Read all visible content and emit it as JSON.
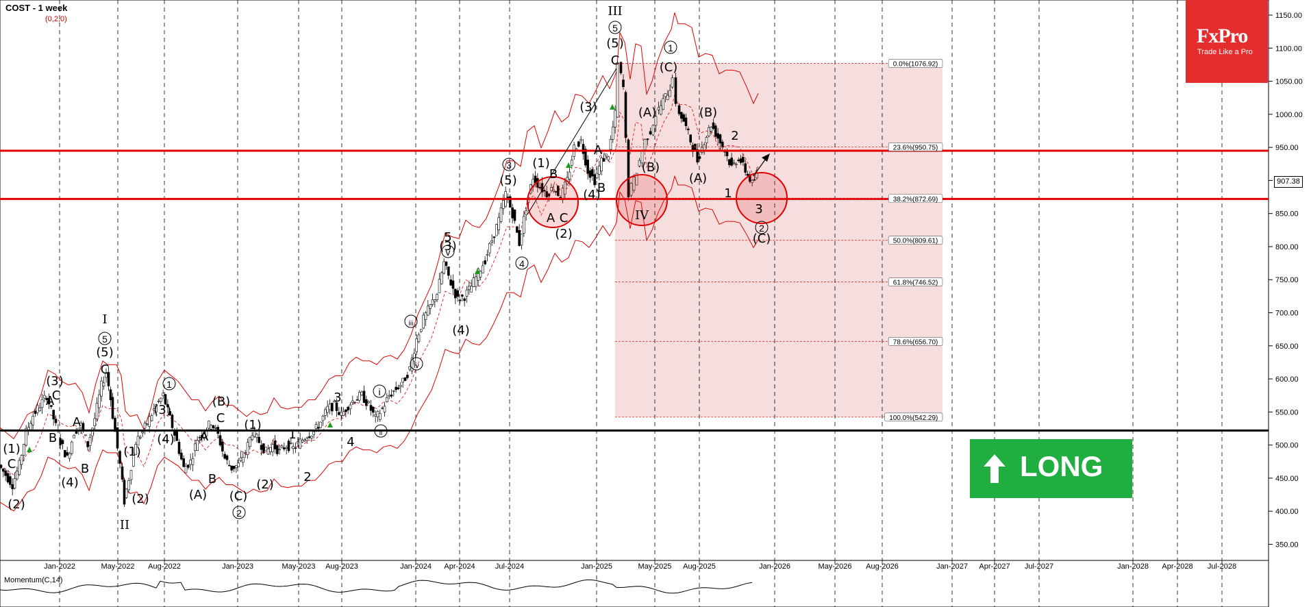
{
  "header": {
    "title": "COST - 1 week",
    "subtitle": "(0,2,0)"
  },
  "logo": {
    "brand": "FxPro",
    "tagline": "Trade Like a Pro"
  },
  "signal": {
    "label": "LONG",
    "color": "#1fae3f"
  },
  "current_price": "907.38",
  "momentum_label": "Momentum(C,14)",
  "colors": {
    "support_lines": "#e00000",
    "fib_zone": "#f7dede",
    "bands": "#e00000",
    "up_arrow": "#1a9a1a"
  },
  "chart_data": {
    "type": "candlestick",
    "symbol": "COST",
    "timeframe": "1 week",
    "y_ticks": [
      1150,
      1100,
      1050,
      1000,
      950,
      900,
      850,
      800,
      750,
      700,
      650,
      600,
      550,
      500,
      450,
      400,
      350
    ],
    "x_ticks": [
      "Jan-2022",
      "May-2022",
      "Aug-2022",
      "Jan-2023",
      "May-2023",
      "Aug-2023",
      "Jan-2024",
      "Apr-2024",
      "Jul-2024",
      "Jan-2025",
      "May-2025",
      "Aug-2025",
      "Jan-2026",
      "May-2026",
      "Aug-2026",
      "Jan-2027",
      "Apr-2027",
      "Jul-2027",
      "Jan-2028",
      "Apr-2028",
      "Jul-2028"
    ],
    "horizontal_lines": [
      {
        "price": 945,
        "color": "red"
      },
      {
        "price": 872,
        "color": "red"
      },
      {
        "price": 522,
        "color": "black"
      }
    ],
    "fibonacci": [
      {
        "label": "0.0%(1076.92)",
        "price": 1076.92
      },
      {
        "label": "23.6%(950.75)",
        "price": 950.75
      },
      {
        "label": "38.2%(872.69)",
        "price": 872.69
      },
      {
        "label": "50.0%(809.61)",
        "price": 809.61
      },
      {
        "label": "61.8%(746.52)",
        "price": 746.52
      },
      {
        "label": "78.6%(656.70)",
        "price": 656.7
      },
      {
        "label": "100.0%(542.29)",
        "price": 542.29
      }
    ],
    "price_path": [
      [
        0,
        470
      ],
      [
        10,
        455
      ],
      [
        20,
        440
      ],
      [
        30,
        470
      ],
      [
        40,
        520
      ],
      [
        50,
        545
      ],
      [
        60,
        560
      ],
      [
        70,
        575
      ],
      [
        80,
        540
      ],
      [
        90,
        505
      ],
      [
        100,
        480
      ],
      [
        110,
        520
      ],
      [
        120,
        530
      ],
      [
        130,
        500
      ],
      [
        140,
        540
      ],
      [
        150,
        590
      ],
      [
        157,
        610
      ],
      [
        163,
        570
      ],
      [
        170,
        520
      ],
      [
        177,
        470
      ],
      [
        183,
        415
      ],
      [
        190,
        450
      ],
      [
        200,
        505
      ],
      [
        210,
        520
      ],
      [
        220,
        540
      ],
      [
        230,
        560
      ],
      [
        240,
        575
      ],
      [
        250,
        540
      ],
      [
        260,
        505
      ],
      [
        270,
        465
      ],
      [
        280,
        475
      ],
      [
        290,
        510
      ],
      [
        300,
        520
      ],
      [
        310,
        535
      ],
      [
        320,
        515
      ],
      [
        330,
        480
      ],
      [
        340,
        465
      ],
      [
        350,
        470
      ],
      [
        360,
        490
      ],
      [
        370,
        520
      ],
      [
        380,
        505
      ],
      [
        390,
        490
      ],
      [
        400,
        500
      ],
      [
        410,
        490
      ],
      [
        420,
        500
      ],
      [
        430,
        495
      ],
      [
        440,
        505
      ],
      [
        450,
        515
      ],
      [
        460,
        520
      ],
      [
        470,
        535
      ],
      [
        480,
        555
      ],
      [
        490,
        560
      ],
      [
        500,
        545
      ],
      [
        510,
        560
      ],
      [
        520,
        570
      ],
      [
        530,
        575
      ],
      [
        540,
        560
      ],
      [
        550,
        540
      ],
      [
        560,
        555
      ],
      [
        570,
        575
      ],
      [
        580,
        585
      ],
      [
        590,
        595
      ],
      [
        600,
        615
      ],
      [
        610,
        660
      ],
      [
        620,
        690
      ],
      [
        630,
        710
      ],
      [
        640,
        730
      ],
      [
        650,
        775
      ],
      [
        660,
        745
      ],
      [
        670,
        720
      ],
      [
        680,
        725
      ],
      [
        690,
        740
      ],
      [
        700,
        760
      ],
      [
        710,
        780
      ],
      [
        720,
        810
      ],
      [
        730,
        840
      ],
      [
        740,
        880
      ],
      [
        750,
        850
      ],
      [
        760,
        805
      ],
      [
        770,
        860
      ],
      [
        780,
        905
      ],
      [
        790,
        890
      ],
      [
        800,
        880
      ],
      [
        810,
        890
      ],
      [
        820,
        875
      ],
      [
        830,
        900
      ],
      [
        840,
        950
      ],
      [
        850,
        960
      ],
      [
        860,
        915
      ],
      [
        870,
        900
      ],
      [
        880,
        930
      ],
      [
        890,
        940
      ],
      [
        900,
        1000
      ],
      [
        905,
        1076
      ],
      [
        912,
        1040
      ],
      [
        920,
        880
      ],
      [
        928,
        900
      ],
      [
        936,
        930
      ],
      [
        944,
        960
      ],
      [
        952,
        975
      ],
      [
        960,
        1000
      ],
      [
        970,
        1020
      ],
      [
        980,
        1040
      ],
      [
        985,
        1060
      ],
      [
        990,
        1010
      ],
      [
        1000,
        990
      ],
      [
        1010,
        960
      ],
      [
        1020,
        930
      ],
      [
        1030,
        960
      ],
      [
        1040,
        985
      ],
      [
        1050,
        965
      ],
      [
        1060,
        945
      ],
      [
        1070,
        920
      ],
      [
        1080,
        935
      ],
      [
        1090,
        915
      ],
      [
        1100,
        895
      ],
      [
        1107,
        907
      ]
    ],
    "wave_labels": [
      "I",
      "II",
      "III",
      "IV",
      "(1)",
      "(2)",
      "(3)",
      "(4)",
      "(5)",
      "(A)",
      "(B)",
      "(C)",
      "A",
      "B",
      "C",
      "1",
      "2",
      "3",
      "4",
      "5",
      "i",
      "ii",
      "iii",
      "iv",
      "v"
    ],
    "annotations": [
      "(3)",
      "5",
      "(3)",
      "(5)",
      "(1)",
      "A",
      "C",
      "(2)",
      "(4)",
      "B",
      "A",
      "(3)",
      "(5)",
      "(A)",
      "(B)",
      "(C)",
      "(A)",
      "(B)",
      "2",
      "1",
      "3",
      "(C)"
    ],
    "xlabel": "",
    "ylabel": ""
  }
}
